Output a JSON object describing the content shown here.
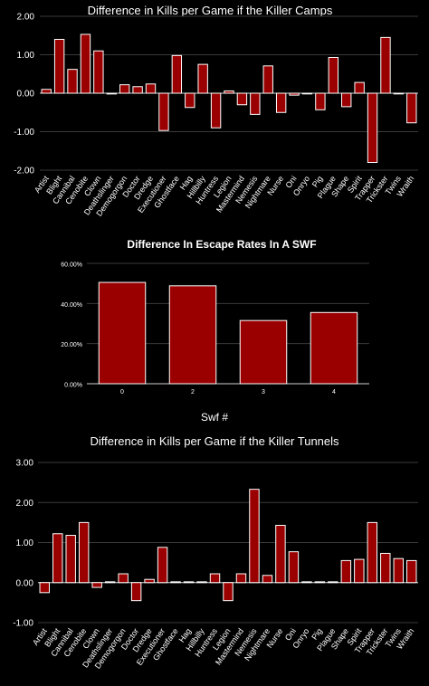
{
  "chart_data": [
    {
      "type": "bar",
      "title": "Difference in Kills per Game if the Killer Camps",
      "xlabel": "",
      "ylabel": "",
      "ylim": [
        -2.0,
        2.0
      ],
      "yticks": [
        "2.00",
        "1.00",
        "0.00",
        "-1.00",
        "-2.00"
      ],
      "grid": true,
      "categories": [
        "Artist",
        "Blight",
        "Cannibal",
        "Cenobite",
        "Clown",
        "Deathslinger",
        "Demogorgon",
        "Doctor",
        "Dredge",
        "Executioner",
        "Ghostface",
        "Hag",
        "Hillbilly",
        "Huntress",
        "Legion",
        "Mastermind",
        "Nemesis",
        "Nightmare",
        "Nurse",
        "Oni",
        "Onryo",
        "Pig",
        "Plague",
        "Shape",
        "Spirit",
        "Trapper",
        "Trickster",
        "Twins",
        "Wraith"
      ],
      "values": [
        0.1,
        1.4,
        0.62,
        1.53,
        1.1,
        -0.02,
        0.22,
        0.17,
        0.24,
        -0.97,
        0.98,
        -0.37,
        0.75,
        -0.9,
        0.06,
        -0.3,
        -0.55,
        0.71,
        -0.5,
        -0.05,
        0.0,
        -0.43,
        0.93,
        -0.35,
        0.28,
        -1.8,
        1.45,
        0.0,
        -0.77
      ]
    },
    {
      "type": "bar",
      "title": "Difference In Escape Rates In A SWF",
      "xlabel": "Swf #",
      "ylabel": "",
      "ylim": [
        0,
        60
      ],
      "yticks": [
        "60.00%",
        "40.00%",
        "20.00%",
        "0.00%"
      ],
      "grid": true,
      "categories": [
        "0",
        "2",
        "3",
        "4"
      ],
      "values": [
        50.5,
        48.8,
        31.5,
        35.5
      ]
    },
    {
      "type": "bar",
      "title": "Difference in Kills per Game if the Killer Tunnels",
      "xlabel": "",
      "ylabel": "",
      "ylim": [
        -1.0,
        3.0
      ],
      "yticks": [
        "3.00",
        "2.00",
        "1.00",
        "0.00",
        "-1.00"
      ],
      "grid": true,
      "categories": [
        "Artist",
        "Blight",
        "Cannibal",
        "Cenobite",
        "Clown",
        "Deathslinger",
        "Demogorgon",
        "Doctor",
        "Dredge",
        "Executioner",
        "Ghostface",
        "Hag",
        "Hillbilly",
        "Huntress",
        "Legion",
        "Mastermind",
        "Nemesis",
        "Nightmare",
        "Nurse",
        "Oni",
        "Onryo",
        "Pig",
        "Plague",
        "Shape",
        "Spirit",
        "Trapper",
        "Trickster",
        "Twins",
        "Wraith"
      ],
      "values": [
        -0.25,
        1.22,
        1.18,
        1.5,
        -0.12,
        0.02,
        0.22,
        -0.45,
        0.08,
        0.88,
        0.02,
        0.02,
        0.02,
        0.22,
        -0.45,
        0.22,
        2.33,
        0.18,
        1.43,
        0.77,
        0.02,
        0.02,
        0.02,
        0.55,
        0.58,
        1.5,
        0.73,
        0.6,
        0.55
      ]
    }
  ]
}
